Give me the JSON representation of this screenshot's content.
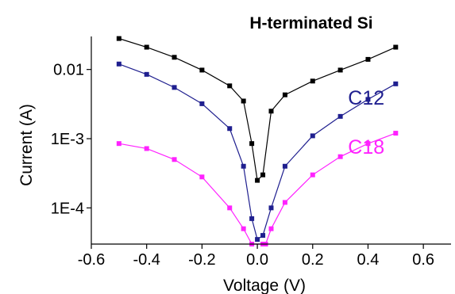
{
  "chart_data": {
    "type": "scatter",
    "title": "H-terminated Si",
    "xlabel": "Voltage (V)",
    "ylabel": "Current (A)",
    "xlim": [
      -0.6,
      0.7
    ],
    "ylim": [
      3e-05,
      0.03
    ],
    "yscale": "log",
    "grid": false,
    "x_ticks": [
      -0.6,
      -0.4,
      -0.2,
      0.0,
      0.2,
      0.4,
      0.6
    ],
    "x_tick_labels": [
      "-0.6",
      "-0.4",
      "-0.2",
      "0.0",
      "0.2",
      "0.4",
      "0.6"
    ],
    "y_ticks": [
      0.0001,
      0.001,
      0.01
    ],
    "y_tick_labels": [
      "1E-4",
      "1E-3",
      "0.01"
    ],
    "series": [
      {
        "name": "",
        "color": "#000000",
        "x": [
          -0.5,
          -0.4,
          -0.3,
          -0.2,
          -0.1,
          -0.05,
          -0.02,
          0.0,
          0.02,
          0.05,
          0.1,
          0.2,
          0.3,
          0.4,
          0.5
        ],
        "y": [
          0.028,
          0.021,
          0.015,
          0.0098,
          0.0058,
          0.0035,
          0.00085,
          0.00025,
          0.0003,
          0.0025,
          0.0043,
          0.0068,
          0.0098,
          0.014,
          0.021
        ]
      },
      {
        "name": "C12",
        "color": "#1f1f8f",
        "x": [
          -0.5,
          -0.4,
          -0.3,
          -0.2,
          -0.1,
          -0.05,
          -0.02,
          0.0,
          0.02,
          0.05,
          0.1,
          0.2,
          0.3,
          0.4,
          0.5
        ],
        "y": [
          0.012,
          0.0085,
          0.0055,
          0.0032,
          0.0014,
          0.0004,
          7e-05,
          3.5e-05,
          4e-05,
          0.0001,
          0.0004,
          0.0011,
          0.0021,
          0.0037,
          0.0062
        ]
      },
      {
        "name": "C18",
        "color": "#ff22ff",
        "x": [
          -0.5,
          -0.4,
          -0.3,
          -0.2,
          -0.1,
          -0.05,
          -0.02,
          0.0,
          0.02,
          0.03,
          0.05,
          0.1,
          0.2,
          0.3,
          0.4,
          0.5
        ],
        "y": [
          0.00085,
          0.00072,
          0.0005,
          0.00028,
          0.0001,
          5e-05,
          3e-05,
          0.0,
          3e-05,
          3e-05,
          5e-05,
          0.00012,
          0.0003,
          0.00055,
          0.00085,
          0.0012
        ]
      }
    ]
  }
}
